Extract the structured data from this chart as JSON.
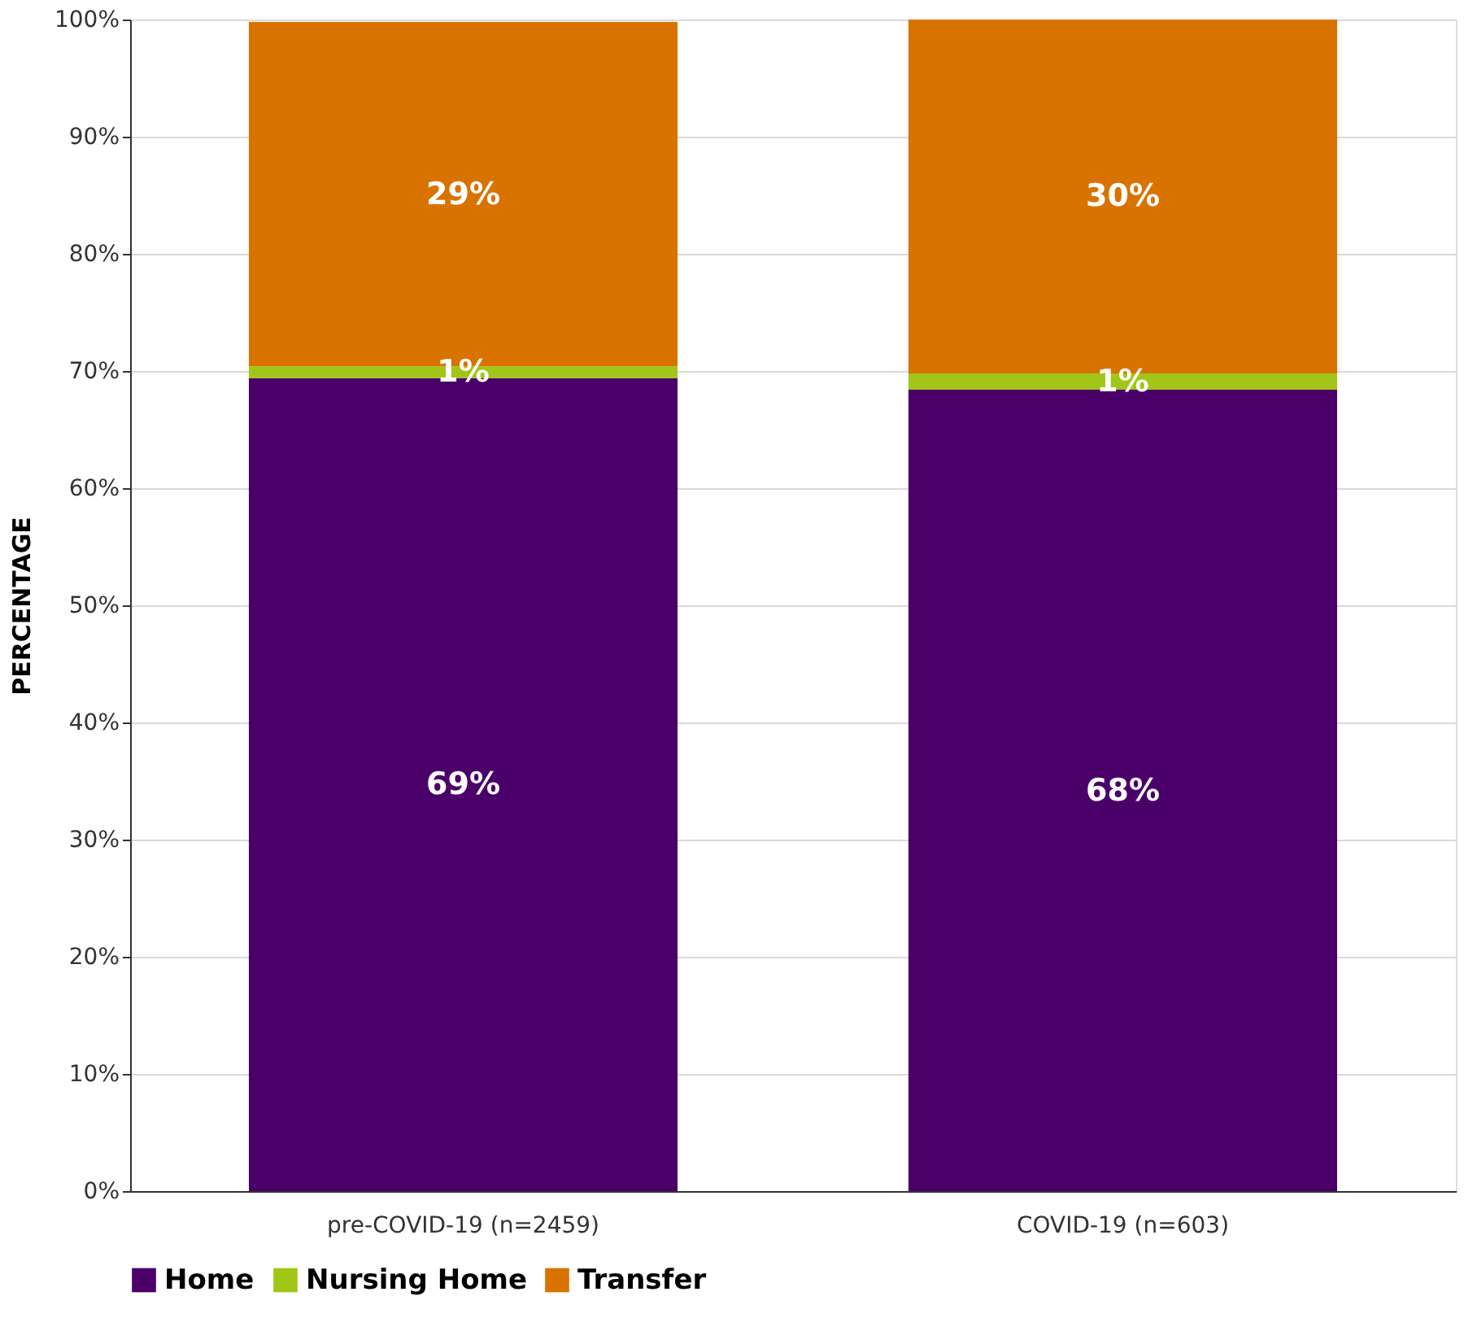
{
  "chart_data": {
    "type": "bar",
    "stacked": true,
    "ylabel": "PERCENTAGE",
    "categories": [
      "pre-COVID-19 (n=2459)",
      "COVID-19 (n=603)"
    ],
    "series": [
      {
        "name": "Home",
        "color": "#4b0069",
        "values": [
          69.4,
          68.4
        ],
        "value_labels": [
          "69%",
          "68%"
        ]
      },
      {
        "name": "Nursing Home",
        "color": "#a2c617",
        "values": [
          1.0,
          1.4
        ],
        "value_labels": [
          "1%",
          "1%"
        ]
      },
      {
        "name": "Transfer",
        "color": "#d97300",
        "values": [
          29.4,
          30.2
        ],
        "value_labels": [
          "29%",
          "30%"
        ]
      }
    ],
    "ylim": [
      0,
      100
    ],
    "yticks": [
      {
        "value": 0,
        "label": "0%"
      },
      {
        "value": 10,
        "label": "10%"
      },
      {
        "value": 20,
        "label": "20%"
      },
      {
        "value": 30,
        "label": "30%"
      },
      {
        "value": 40,
        "label": "40%"
      },
      {
        "value": 50,
        "label": "50%"
      },
      {
        "value": 60,
        "label": "60%"
      },
      {
        "value": 70,
        "label": "70%"
      },
      {
        "value": 80,
        "label": "80%"
      },
      {
        "value": 90,
        "label": "90%"
      },
      {
        "value": 100,
        "label": "100%"
      }
    ],
    "grid": "y",
    "legend": "bottom"
  }
}
